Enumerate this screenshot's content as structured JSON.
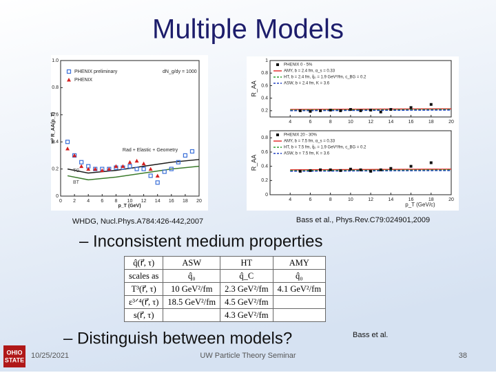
{
  "title": "Multiple Models",
  "figures": [
    {
      "ylabel": "π⁰ R_AA(p_T)",
      "xlabel": "p_T (GeV)",
      "xlim": [
        0,
        20
      ],
      "xticks": [
        0,
        2,
        4,
        6,
        8,
        10,
        12,
        14,
        16,
        18,
        20
      ],
      "ylim": [
        0,
        1
      ],
      "yticks": [
        0,
        0.2,
        0.4,
        0.6,
        0.8,
        {
          "value": 1,
          "label": "1.0"
        }
      ],
      "annotations": [
        "dN_g/dy = 1000",
        "Rad + Elastic + Geometry"
      ],
      "series": [
        {
          "name": "PHENIX preliminary",
          "color": "#3a6fd8",
          "marker": "square",
          "x": [
            1,
            2,
            3,
            4,
            5,
            6,
            7,
            8,
            9,
            10,
            11,
            12,
            13,
            14,
            15,
            16,
            17,
            18,
            19
          ],
          "values": [
            0.4,
            0.3,
            0.25,
            0.22,
            0.2,
            0.2,
            0.2,
            0.21,
            0.21,
            0.22,
            0.2,
            0.2,
            0.15,
            0.1,
            0.18,
            0.2,
            0.25,
            0.3,
            0.33
          ]
        },
        {
          "name": "PHENIX",
          "color": "#d42020",
          "marker": "triangle",
          "x": [
            1,
            2,
            3,
            4,
            5,
            6,
            7,
            8,
            9,
            10,
            11,
            12,
            13,
            14
          ],
          "values": [
            0.35,
            0.3,
            0.22,
            0.2,
            0.2,
            0.19,
            0.2,
            0.22,
            0.22,
            0.25,
            0.26,
            0.24,
            0.2,
            0.15
          ]
        }
      ],
      "curves": [
        {
          "name": "TG",
          "color": "#1a1a1a",
          "x": [
            1,
            4,
            8,
            12,
            16,
            20
          ],
          "values": [
            0.2,
            0.17,
            0.19,
            0.22,
            0.25,
            0.27
          ]
        },
        {
          "name": "BT",
          "color": "#3a7a2a",
          "x": [
            1,
            4,
            8,
            12,
            16,
            20
          ],
          "values": [
            0.15,
            0.12,
            0.14,
            0.17,
            0.2,
            0.22
          ]
        }
      ],
      "caption": "WHDG, Nucl.Phys.A784:426-442,2007"
    },
    {
      "xlabel": "p_T (GeV/c)",
      "xlim": [
        2,
        20
      ],
      "xticks": [
        4,
        6,
        8,
        10,
        12,
        14,
        16,
        18,
        20
      ],
      "panels": [
        {
          "ylabel": "R_AA",
          "ylim": [
            0.1,
            1
          ],
          "yticks": [
            0.2,
            0.4,
            0.6,
            0.8,
            1
          ],
          "points": {
            "name": "PHENIX 0 - 5%",
            "color": "#111111",
            "x": [
              5,
              6,
              7,
              8,
              9,
              10,
              11,
              12,
              13,
              14,
              16,
              18
            ],
            "values": [
              0.2,
              0.19,
              0.2,
              0.21,
              0.2,
              0.22,
              0.2,
              0.21,
              0.18,
              0.22,
              0.25,
              0.3
            ]
          },
          "models": [
            {
              "name": "AMY, b = 2.4 fm, α_s = 0.33",
              "color": "#e02020",
              "dash": false,
              "x": [
                4,
                20
              ],
              "values": [
                0.22,
                0.23
              ]
            },
            {
              "name": "HT, b = 2.4 fm, q̂₀ = 1.9 GeV²/fm, c_BG = 0.2",
              "color": "#2a9a2a",
              "dash": true,
              "x": [
                4,
                20
              ],
              "values": [
                0.21,
                0.22
              ]
            },
            {
              "name": "ASW, b = 2.4 fm, K = 3.6",
              "color": "#2040c0",
              "dash": true,
              "x": [
                4,
                20
              ],
              "values": [
                0.2,
                0.21
              ]
            }
          ]
        },
        {
          "ylabel": "R_AA",
          "ylim": [
            0,
            0.9
          ],
          "yticks": [
            0,
            0.2,
            0.4,
            0.6,
            0.8
          ],
          "points": {
            "name": "PHENIX 20 - 30%",
            "color": "#111111",
            "x": [
              5,
              6,
              7,
              8,
              9,
              10,
              11,
              12,
              13,
              14,
              16,
              18
            ],
            "values": [
              0.33,
              0.34,
              0.35,
              0.35,
              0.34,
              0.36,
              0.35,
              0.33,
              0.35,
              0.37,
              0.4,
              0.45
            ]
          },
          "models": [
            {
              "name": "AMY, b = 7.5 fm, α_s = 0.33",
              "color": "#e02020",
              "dash": false,
              "x": [
                4,
                20
              ],
              "values": [
                0.35,
                0.36
              ]
            },
            {
              "name": "HT, b = 7.5 fm, q̂₀ = 1.9 GeV²/fm, c_BG = 0.2",
              "color": "#2a9a2a",
              "dash": true,
              "x": [
                4,
                20
              ],
              "values": [
                0.34,
                0.35
              ]
            },
            {
              "name": "ASW, b = 7.5 fm, K = 3.6",
              "color": "#2040c0",
              "dash": true,
              "x": [
                4,
                20
              ],
              "values": [
                0.33,
                0.34
              ]
            }
          ]
        }
      ],
      "caption": "Bass et al., Phys.Rev.C79:024901,2009"
    }
  ],
  "bullets": [
    "– Inconsistent medium properties",
    "– Distinguish between models?"
  ],
  "table": {
    "header": [
      "q̂(r⃗, τ)",
      "ASW",
      "HT",
      "AMY"
    ],
    "rows": [
      [
        "scales as",
        "q̂₀",
        "q̂_C",
        "q̂₀"
      ],
      [
        "T³(r⃗, τ)",
        "10 GeV²/fm",
        "2.3 GeV²/fm",
        "4.1 GeV²/fm"
      ],
      [
        "ε³ᐟ⁴(r⃗, τ)",
        "18.5 GeV²/fm",
        "4.5 GeV²/fm",
        null
      ],
      [
        "s(r⃗, τ)",
        null,
        "4.3 GeV²/fm",
        null
      ]
    ]
  },
  "note": "Bass et al.",
  "logo": [
    "OHIO",
    "STATE"
  ],
  "footer": {
    "date": "10/25/2021",
    "event": "UW Particle Theory Seminar",
    "page": "38"
  }
}
